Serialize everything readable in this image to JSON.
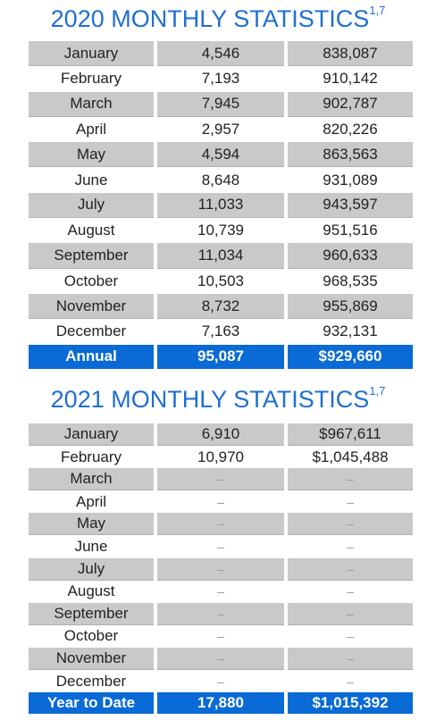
{
  "tables": [
    {
      "title": "2020 MONTHLY STATISTICS",
      "title_sup": "1,7",
      "rows": [
        [
          "January",
          "4,546",
          "838,087"
        ],
        [
          "February",
          "7,193",
          "910,142"
        ],
        [
          "March",
          "7,945",
          "902,787"
        ],
        [
          "April",
          "2,957",
          "820,226"
        ],
        [
          "May",
          "4,594",
          "863,563"
        ],
        [
          "June",
          "8,648",
          "931,089"
        ],
        [
          "July",
          "11,033",
          "943,597"
        ],
        [
          "August",
          "10,739",
          "951,516"
        ],
        [
          "September",
          "11,034",
          "960,633"
        ],
        [
          "October",
          "10,503",
          "968,535"
        ],
        [
          "November",
          "8,732",
          "955,869"
        ],
        [
          "December",
          "7,163",
          "932,131"
        ]
      ],
      "total": [
        "Annual",
        "95,087",
        "$929,660"
      ]
    },
    {
      "title": "2021 MONTHLY STATISTICS",
      "title_sup": "1,7",
      "rows": [
        [
          "January",
          "6,910",
          "$967,611"
        ],
        [
          "February",
          "10,970",
          "$1,045,488"
        ],
        [
          "March",
          "–",
          "–"
        ],
        [
          "April",
          "–",
          "–"
        ],
        [
          "May",
          "–",
          "–"
        ],
        [
          "June",
          "–",
          "–"
        ],
        [
          "July",
          "–",
          "–"
        ],
        [
          "August",
          "–",
          "–"
        ],
        [
          "September",
          "–",
          "–"
        ],
        [
          "October",
          "–",
          "–"
        ],
        [
          "November",
          "–",
          "–"
        ],
        [
          "December",
          "–",
          "–"
        ]
      ],
      "total": [
        "Year to Date",
        "17,880",
        "$1,015,392"
      ]
    }
  ]
}
